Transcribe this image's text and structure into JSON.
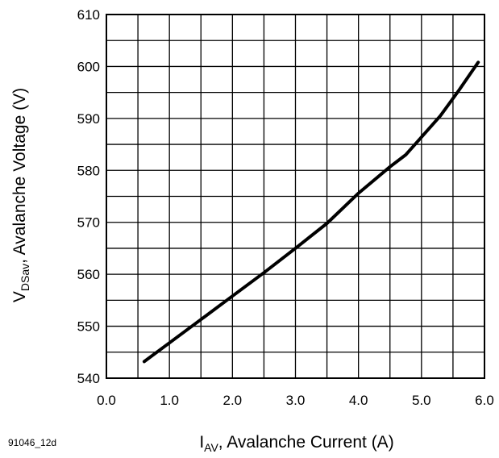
{
  "figure_id": "91046_12d",
  "chart_data": {
    "type": "line",
    "title": "",
    "xlabel": {
      "symbol": "I",
      "subscript": "AV",
      "text": ", Avalanche Current (A)"
    },
    "ylabel": {
      "symbol": "V",
      "subscript": "DSav",
      "text": ", Avalanche Voltage (V)"
    },
    "xlim": [
      0.0,
      6.0
    ],
    "ylim": [
      540,
      610
    ],
    "x_ticks": [
      0.0,
      1.0,
      2.0,
      3.0,
      4.0,
      5.0,
      6.0
    ],
    "x_tick_labels": [
      "0.0",
      "1.0",
      "2.0",
      "3.0",
      "4.0",
      "5.0",
      "6.0"
    ],
    "y_ticks": [
      540,
      550,
      560,
      570,
      580,
      590,
      600,
      610
    ],
    "y_tick_labels": [
      "540",
      "550",
      "560",
      "570",
      "580",
      "590",
      "600",
      "610"
    ],
    "grid": true,
    "minor_grid": {
      "x_step": 0.5,
      "y_step": 5
    },
    "line_color": "#000000",
    "grid_color": "#000000",
    "series": [
      {
        "x": [
          0.6,
          1.0,
          1.5,
          2.0,
          2.5,
          3.0,
          3.5,
          4.0,
          4.5,
          4.75,
          5.0,
          5.3,
          5.6,
          5.9
        ],
        "y": [
          543.2,
          546.8,
          551.3,
          555.8,
          560.3,
          565.0,
          569.8,
          575.6,
          580.7,
          583.0,
          586.4,
          590.5,
          595.5,
          600.8
        ]
      }
    ]
  }
}
